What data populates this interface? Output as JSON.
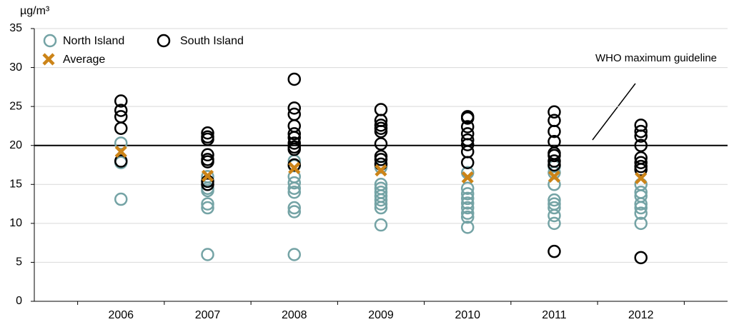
{
  "chart_data": {
    "type": "strip",
    "y_unit": "µg/m³",
    "categories": [
      "2006",
      "2007",
      "2008",
      "2009",
      "2010",
      "2011",
      "2012"
    ],
    "series": [
      {
        "name": "North Island",
        "color": "#74a3a5",
        "marker": "circle",
        "values": [
          [
            20.3,
            17.8,
            13.1
          ],
          [
            16.0,
            14.5,
            14.2,
            12.5,
            12.0,
            6.0
          ],
          [
            18.0,
            17.4,
            16.0,
            15.2,
            14.5,
            14.0,
            12.0,
            11.5,
            6.0
          ],
          [
            17.2,
            15.0,
            14.5,
            14.0,
            13.5,
            13.0,
            12.5,
            12.0,
            9.8
          ],
          [
            16.5,
            14.5,
            13.8,
            13.2,
            12.6,
            12.0,
            11.3,
            10.8,
            9.5
          ],
          [
            17.3,
            16.5,
            15.0,
            13.0,
            12.5,
            12.0,
            11.0,
            10.0
          ],
          [
            15.0,
            14.0,
            13.5,
            12.5,
            12.0,
            11.3,
            10.0
          ]
        ]
      },
      {
        "name": "South Island",
        "color": "#000000",
        "marker": "circle",
        "values": [
          [
            25.7,
            24.5,
            23.7,
            22.2,
            18.0
          ],
          [
            21.6,
            21.1,
            20.8,
            18.8,
            18.2,
            17.9,
            15.4,
            15.0
          ],
          [
            28.5,
            24.8,
            24.0,
            22.5,
            21.5,
            21.0,
            20.3,
            19.8,
            19.5,
            17.5
          ],
          [
            24.6,
            23.2,
            22.6,
            22.2,
            21.8,
            20.2,
            18.6,
            18.2,
            17.6
          ],
          [
            23.7,
            23.5,
            22.4,
            21.5,
            20.7,
            20.1,
            19.2,
            17.8
          ],
          [
            24.3,
            23.2,
            21.8,
            20.5,
            19.0,
            18.7,
            18.0,
            17.5,
            6.4
          ],
          [
            22.6,
            21.8,
            21.2,
            20.0,
            18.4,
            17.8,
            17.3,
            16.9,
            5.6
          ]
        ]
      },
      {
        "name": "Average",
        "color": "#cc8418",
        "marker": "cross",
        "values": [
          19.2,
          16.1,
          17.1,
          16.8,
          15.9,
          16.0,
          15.8
        ]
      }
    ],
    "reference_line": {
      "value": 20,
      "label": "WHO maximum guideline"
    },
    "ylim": [
      0,
      35
    ],
    "yticks": [
      0,
      5,
      10,
      15,
      20,
      25,
      30,
      35
    ],
    "grid": true
  }
}
